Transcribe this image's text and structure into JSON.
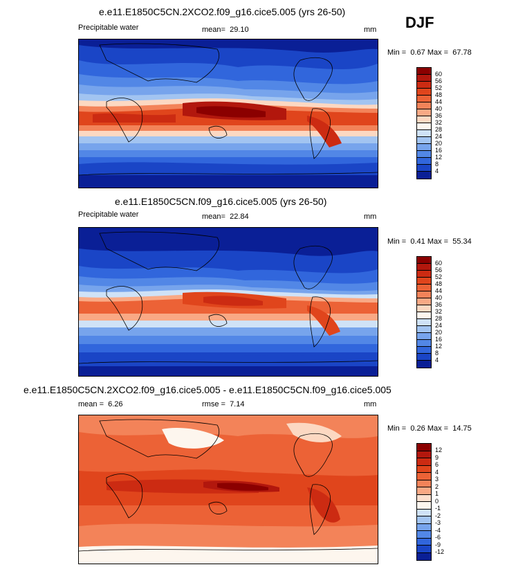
{
  "season": "DJF",
  "panels": [
    {
      "title": "e.e11.E1850C5CN.2XCO2.f09_g16.cice5.005 (yrs 26-50)",
      "left_label": "Precipitable water",
      "center_label": "mean=",
      "center_value": "29.10",
      "units": "mm",
      "min_label": "Min =",
      "min_value": "0.67",
      "max_label": "Max =",
      "max_value": "67.78",
      "colorbar": {
        "labels": [
          "60",
          "56",
          "52",
          "48",
          "44",
          "40",
          "36",
          "32",
          "28",
          "24",
          "20",
          "16",
          "12",
          "8",
          "4"
        ],
        "colors": [
          "#8b0000",
          "#b2170d",
          "#cc2b12",
          "#e0451c",
          "#ec6236",
          "#f38359",
          "#f9a985",
          "#fcd8c2",
          "#fdf6ee",
          "#cfe2f7",
          "#a2c4f1",
          "#77a4ec",
          "#5287e6",
          "#3166dc",
          "#1a45c6",
          "#0a1f96"
        ]
      }
    },
    {
      "title": "e.e11.E1850C5CN.f09_g16.cice5.005 (yrs 26-50)",
      "left_label": "Precipitable water",
      "center_label": "mean=",
      "center_value": "22.84",
      "units": "mm",
      "min_label": "Min =",
      "min_value": "0.41",
      "max_label": "Max =",
      "max_value": "55.34",
      "colorbar": {
        "labels": [
          "60",
          "56",
          "52",
          "48",
          "44",
          "40",
          "36",
          "32",
          "28",
          "24",
          "20",
          "16",
          "12",
          "8",
          "4"
        ],
        "colors": [
          "#8b0000",
          "#b2170d",
          "#cc2b12",
          "#e0451c",
          "#ec6236",
          "#f38359",
          "#f9a985",
          "#fcd8c2",
          "#fdf6ee",
          "#cfe2f7",
          "#a2c4f1",
          "#77a4ec",
          "#5287e6",
          "#3166dc",
          "#1a45c6",
          "#0a1f96"
        ]
      }
    },
    {
      "title": "e.e11.E1850C5CN.2XCO2.f09_g16.cice5.005 - e.e11.E1850C5CN.f09_g16.cice5.005",
      "left_label": "mean =",
      "left_value": "6.26",
      "center_label": "rmse =",
      "center_value": "7.14",
      "units": "mm",
      "min_label": "Min =",
      "min_value": "0.26",
      "max_label": "Max =",
      "max_value": "14.75",
      "colorbar": {
        "labels": [
          "12",
          "9",
          "6",
          "4",
          "3",
          "2",
          "1",
          "0",
          "-1",
          "-2",
          "-3",
          "-4",
          "-6",
          "-9",
          "-12"
        ],
        "colors": [
          "#8b0000",
          "#b2170d",
          "#cc2b12",
          "#e0451c",
          "#ec6236",
          "#f38359",
          "#f9a985",
          "#fde0cf",
          "#fdf6ee",
          "#cfe2f7",
          "#a2c4f1",
          "#77a4ec",
          "#5287e6",
          "#3166dc",
          "#1a45c6",
          "#0a1f96"
        ]
      }
    }
  ]
}
